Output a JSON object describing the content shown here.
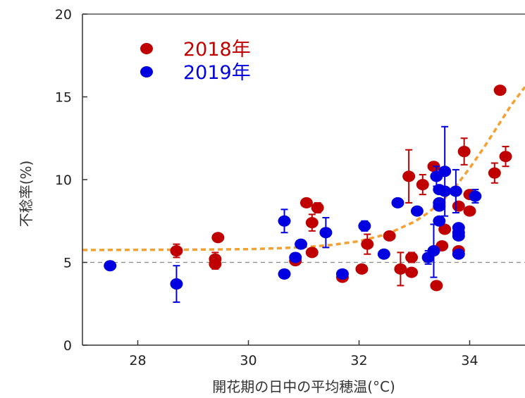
{
  "chart_data": {
    "type": "scatter",
    "title": "",
    "xlabel": "開花期の日中の平均穂温(°C)",
    "ylabel": "不稔率(%)",
    "xlim": [
      27.0,
      35.0
    ],
    "ylim": [
      0,
      20
    ],
    "xticks": [
      28,
      30,
      32,
      34
    ],
    "yticks": [
      0,
      5,
      10,
      15,
      20
    ],
    "x_tick_labels": [
      "28",
      "30",
      "32",
      "34"
    ],
    "y_tick_labels": [
      "0",
      "5",
      "10",
      "15",
      "20"
    ],
    "grid": false,
    "legend_position": "top-left",
    "reference_line_y": 5,
    "series": [
      {
        "name": "2018年",
        "color": "#c00000",
        "points": [
          {
            "x": 28.7,
            "y": 5.7,
            "err": 0.4
          },
          {
            "x": 29.4,
            "y": 5.2,
            "err": 0.4
          },
          {
            "x": 29.4,
            "y": 4.9,
            "err": 0.3
          },
          {
            "x": 29.45,
            "y": 6.5,
            "err": 0
          },
          {
            "x": 30.85,
            "y": 5.1,
            "err": 0
          },
          {
            "x": 31.05,
            "y": 8.6,
            "err": 0
          },
          {
            "x": 31.15,
            "y": 7.4,
            "err": 0.5
          },
          {
            "x": 31.15,
            "y": 5.6,
            "err": 0
          },
          {
            "x": 31.25,
            "y": 8.3,
            "err": 0.3
          },
          {
            "x": 31.7,
            "y": 4.1,
            "err": 0
          },
          {
            "x": 32.05,
            "y": 4.6,
            "err": 0
          },
          {
            "x": 32.15,
            "y": 6.1,
            "err": 0.6
          },
          {
            "x": 32.55,
            "y": 6.6,
            "err": 0
          },
          {
            "x": 32.75,
            "y": 4.6,
            "err": 1.0
          },
          {
            "x": 32.9,
            "y": 10.2,
            "err": 1.6
          },
          {
            "x": 32.95,
            "y": 5.3,
            "err": 0.3
          },
          {
            "x": 32.95,
            "y": 4.4,
            "err": 0
          },
          {
            "x": 33.15,
            "y": 9.7,
            "err": 0.6
          },
          {
            "x": 33.35,
            "y": 10.8,
            "err": 0
          },
          {
            "x": 33.4,
            "y": 3.6,
            "err": 0
          },
          {
            "x": 33.5,
            "y": 6.0,
            "err": 0
          },
          {
            "x": 33.55,
            "y": 7.0,
            "err": 0
          },
          {
            "x": 33.8,
            "y": 8.4,
            "err": 0
          },
          {
            "x": 33.8,
            "y": 5.7,
            "err": 0
          },
          {
            "x": 33.9,
            "y": 11.7,
            "err": 0.8
          },
          {
            "x": 34.0,
            "y": 9.1,
            "err": 0
          },
          {
            "x": 34.0,
            "y": 8.1,
            "err": 0
          },
          {
            "x": 34.45,
            "y": 10.4,
            "err": 0.6
          },
          {
            "x": 34.55,
            "y": 15.4,
            "err": 0
          },
          {
            "x": 34.65,
            "y": 11.4,
            "err": 0.6
          }
        ]
      },
      {
        "name": "2019年",
        "color": "#0000e0",
        "points": [
          {
            "x": 27.5,
            "y": 4.8,
            "err": 0
          },
          {
            "x": 28.7,
            "y": 3.7,
            "err": 1.1
          },
          {
            "x": 30.65,
            "y": 7.5,
            "err": 0.7
          },
          {
            "x": 30.65,
            "y": 4.3,
            "err": 0
          },
          {
            "x": 30.85,
            "y": 5.3,
            "err": 0
          },
          {
            "x": 30.95,
            "y": 6.1,
            "err": 0
          },
          {
            "x": 31.4,
            "y": 6.8,
            "err": 0.9
          },
          {
            "x": 31.7,
            "y": 4.3,
            "err": 0
          },
          {
            "x": 32.1,
            "y": 7.2,
            "err": 0.3
          },
          {
            "x": 32.45,
            "y": 5.5,
            "err": 0
          },
          {
            "x": 32.7,
            "y": 8.6,
            "err": 0
          },
          {
            "x": 33.05,
            "y": 8.1,
            "err": 0
          },
          {
            "x": 33.25,
            "y": 5.3,
            "err": 0.4
          },
          {
            "x": 33.35,
            "y": 5.7,
            "err": 1.6
          },
          {
            "x": 33.4,
            "y": 10.2,
            "err": 0.6
          },
          {
            "x": 33.45,
            "y": 9.4,
            "err": 0
          },
          {
            "x": 33.45,
            "y": 8.6,
            "err": 0
          },
          {
            "x": 33.45,
            "y": 8.4,
            "err": 0
          },
          {
            "x": 33.45,
            "y": 7.5,
            "err": 0
          },
          {
            "x": 33.55,
            "y": 10.5,
            "err": 2.7
          },
          {
            "x": 33.55,
            "y": 9.3,
            "err": 0
          },
          {
            "x": 33.75,
            "y": 9.3,
            "err": 1.3
          },
          {
            "x": 33.8,
            "y": 7.1,
            "err": 0
          },
          {
            "x": 33.8,
            "y": 6.8,
            "err": 0
          },
          {
            "x": 33.8,
            "y": 6.6,
            "err": 0
          },
          {
            "x": 33.8,
            "y": 5.5,
            "err": 0
          },
          {
            "x": 34.1,
            "y": 9.0,
            "err": 0.4
          }
        ]
      }
    ],
    "fit_curve": {
      "color": "#f5a030",
      "style": "dashed",
      "x": [
        27.0,
        29.0,
        30.0,
        30.5,
        31.0,
        31.5,
        32.0,
        32.5,
        33.0,
        33.25,
        33.5,
        33.75,
        34.0,
        34.25,
        34.5,
        34.75,
        35.0
      ],
      "y": [
        5.75,
        5.77,
        5.8,
        5.85,
        5.92,
        6.05,
        6.28,
        6.7,
        7.45,
        8.0,
        8.7,
        9.6,
        10.7,
        11.9,
        13.2,
        14.5,
        15.6
      ]
    }
  }
}
